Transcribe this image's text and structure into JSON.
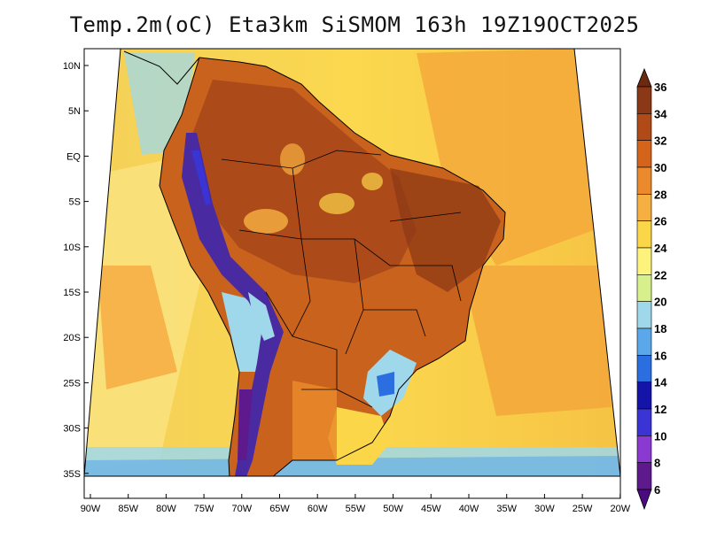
{
  "title": "Temp.2m(oC) Eta3km SiSMOM 163h 19Z19OCT2025",
  "map": {
    "lat_labels": [
      "10N",
      "5N",
      "EQ",
      "5S",
      "10S",
      "15S",
      "20S",
      "25S",
      "30S",
      "35S"
    ],
    "lon_labels": [
      "90W",
      "85W",
      "80W",
      "75W",
      "70W",
      "65W",
      "60W",
      "55W",
      "50W",
      "45W",
      "40W",
      "35W",
      "30W",
      "25W",
      "20W"
    ]
  },
  "colorbar": {
    "labels": [
      "36",
      "34",
      "32",
      "30",
      "28",
      "26",
      "24",
      "22",
      "20",
      "18",
      "16",
      "14",
      "12",
      "10",
      "8",
      "6"
    ],
    "colors": [
      "#6b2a0f",
      "#8a3815",
      "#b04a17",
      "#d4641c",
      "#ea8a2c",
      "#f6b042",
      "#fbd648",
      "#fdf27c",
      "#d8f08c",
      "#9fd8ea",
      "#5aa8ea",
      "#2a6ee0",
      "#1414a8",
      "#3a34d4",
      "#8a3ad0",
      "#5e1a8c",
      "#4a0a80"
    ]
  },
  "colors": {
    "ocean_warm": "#f2c24a",
    "ocean_cool": "#fbe07a",
    "land_base": "#c8621c",
    "land_hot": "#9a3c14",
    "andes_cold": "#4a2aa0"
  }
}
